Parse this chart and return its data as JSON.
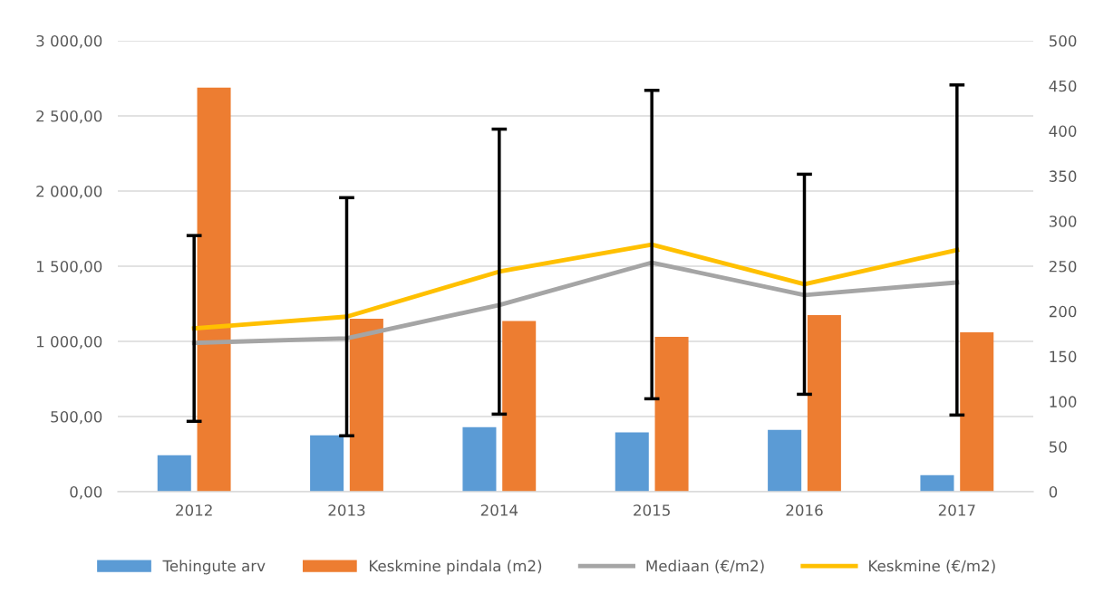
{
  "chart_data": {
    "type": "bar",
    "categories": [
      "2012",
      "2013",
      "2014",
      "2015",
      "2016",
      "2017"
    ],
    "series": [
      {
        "name": "Tehingute arv",
        "color": "#5b9bd5",
        "values": [
          243,
          375,
          429,
          394,
          411,
          110
        ]
      },
      {
        "name": "Keskmine pindala (m2)",
        "color": "#ed7d31",
        "values": [
          2688,
          1150,
          1135,
          1030,
          1174,
          1060
        ]
      },
      {
        "name": "Mediaan (€/m2)",
        "type": "line",
        "axis": "y2",
        "color": "#a5a5a5",
        "values": [
          165,
          170,
          207,
          254,
          218,
          232
        ]
      },
      {
        "name": "Keskmine (€/m2)",
        "type": "line",
        "axis": "y2",
        "color": "#ffc000",
        "values": [
          181,
          194,
          244,
          274,
          230,
          268
        ],
        "errors": [
          103,
          132,
          158,
          171,
          122,
          183
        ]
      }
    ],
    "ylim": [
      0,
      3000
    ],
    "yticks": [
      {
        "value": 0,
        "label": "0,00"
      },
      {
        "value": 500,
        "label": "500,00"
      },
      {
        "value": 1000,
        "label": "1 000,00"
      },
      {
        "value": 1500,
        "label": "1 500,00"
      },
      {
        "value": 2000,
        "label": "2 000,00"
      },
      {
        "value": 2500,
        "label": "2 500,00"
      },
      {
        "value": 3000,
        "label": "3 000,00"
      }
    ],
    "y2lim": [
      0,
      500
    ],
    "y2ticks": [
      0,
      50,
      100,
      150,
      200,
      250,
      300,
      350,
      400,
      450,
      500
    ],
    "grid": "y",
    "legend": "bottom",
    "marker": "none",
    "line_style": "solid"
  }
}
